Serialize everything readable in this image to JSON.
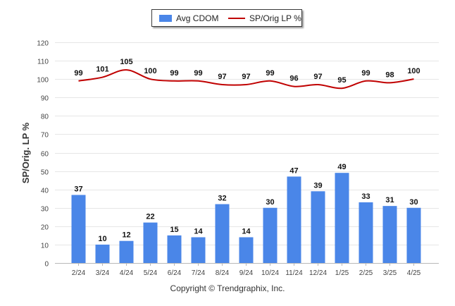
{
  "chart_data": {
    "type": "bar",
    "categories": [
      "2/24",
      "3/24",
      "4/24",
      "5/24",
      "6/24",
      "7/24",
      "8/24",
      "9/24",
      "10/24",
      "11/24",
      "12/24",
      "1/25",
      "2/25",
      "3/25",
      "4/25"
    ],
    "series": [
      {
        "name": "Avg CDOM",
        "type": "bar",
        "color": "#4a86e8",
        "values": [
          37,
          10,
          12,
          22,
          15,
          14,
          32,
          14,
          30,
          47,
          39,
          49,
          33,
          31,
          30
        ]
      },
      {
        "name": "SP/Orig LP %",
        "type": "line",
        "color": "#c00000",
        "values": [
          99,
          101,
          105,
          100,
          99,
          99,
          97,
          97,
          99,
          96,
          97,
          95,
          99,
          98,
          100
        ]
      }
    ],
    "ylabel": "SP/Orig. LP %",
    "ylim": [
      0,
      120
    ],
    "yticks": [
      0,
      10,
      20,
      30,
      40,
      50,
      60,
      70,
      80,
      90,
      100,
      110,
      120
    ],
    "grid": true,
    "legend_position": "top"
  },
  "footer": "Copyright © Trendgraphix, Inc."
}
